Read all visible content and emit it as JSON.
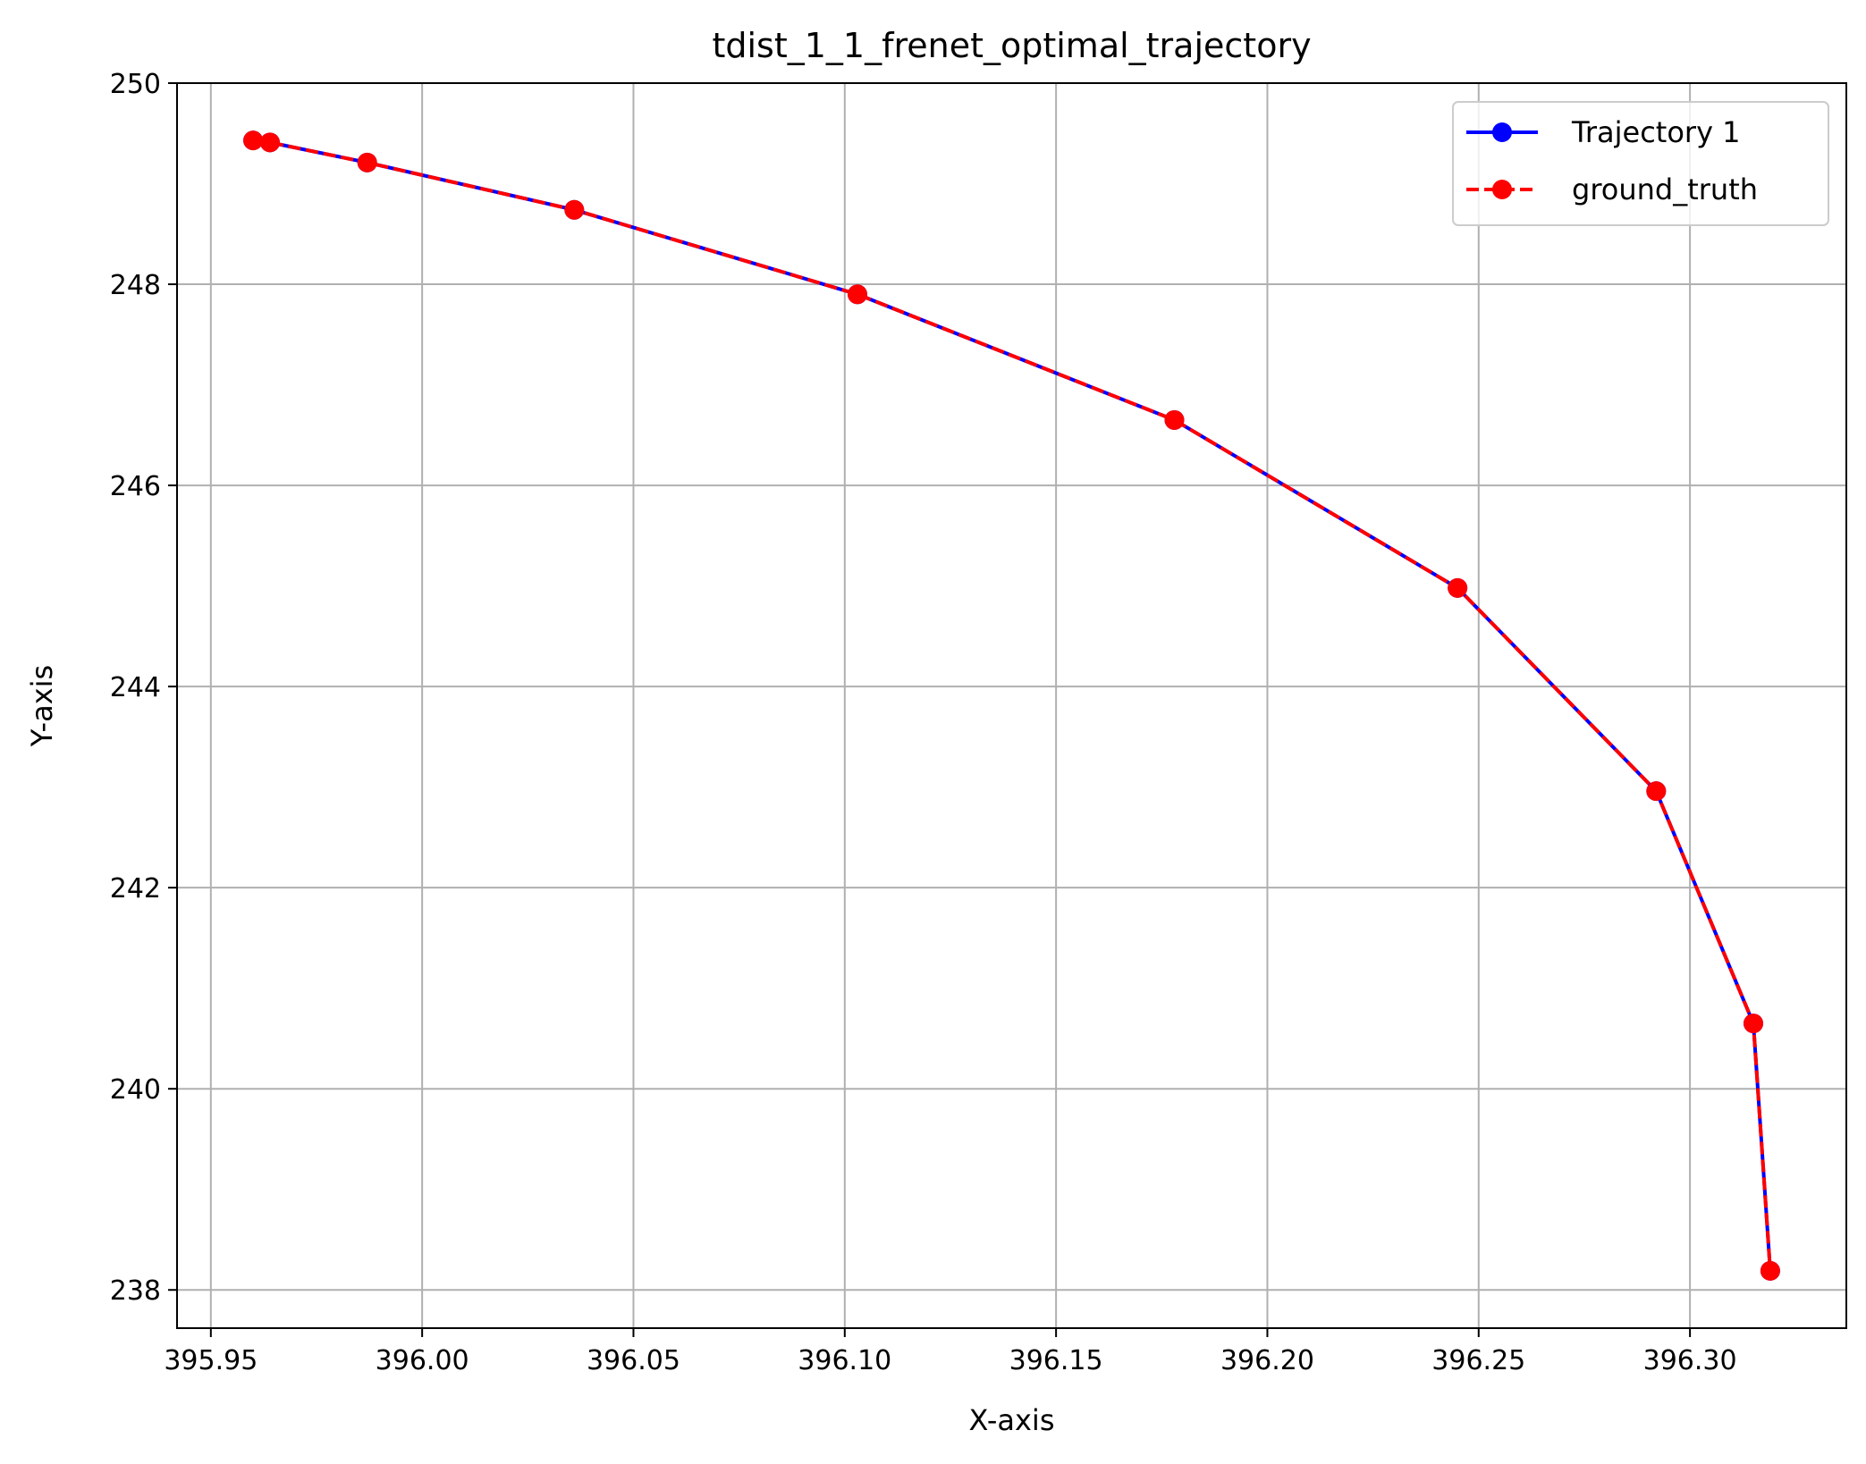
{
  "chart_data": {
    "type": "line",
    "title": "tdist_1_1_frenet_optimal_trajectory",
    "xlabel": "X-axis",
    "ylabel": "Y-axis",
    "xlim": [
      395.942,
      396.337
    ],
    "ylim": [
      237.62,
      250.0
    ],
    "xticks": [
      395.95,
      396.0,
      396.05,
      396.1,
      396.15,
      396.2,
      396.25,
      396.3
    ],
    "xtick_labels": [
      "395.95",
      "396.00",
      "396.05",
      "396.10",
      "396.15",
      "396.20",
      "396.25",
      "396.30"
    ],
    "yticks": [
      238,
      240,
      242,
      244,
      246,
      248,
      250
    ],
    "ytick_labels": [
      "238",
      "240",
      "242",
      "244",
      "246",
      "248",
      "250"
    ],
    "grid": true,
    "legend_position": "top-right",
    "series": [
      {
        "name": "Trajectory 1",
        "color": "#0000ff",
        "line_style": "solid",
        "marker": "circle",
        "x": [
          395.96,
          395.964,
          395.987,
          396.036,
          396.103,
          396.178,
          396.245,
          396.292,
          396.315,
          396.319
        ],
        "y": [
          249.43,
          249.41,
          249.21,
          248.74,
          247.9,
          246.65,
          244.98,
          242.96,
          240.65,
          238.19
        ]
      },
      {
        "name": "ground_truth",
        "color": "#ff0000",
        "line_style": "dashed",
        "marker": "circle",
        "x": [
          395.96,
          395.964,
          395.987,
          396.036,
          396.103,
          396.178,
          396.245,
          396.292,
          396.315,
          396.319
        ],
        "y": [
          249.43,
          249.41,
          249.21,
          248.74,
          247.9,
          246.65,
          244.98,
          242.96,
          240.65,
          238.19
        ]
      }
    ]
  }
}
